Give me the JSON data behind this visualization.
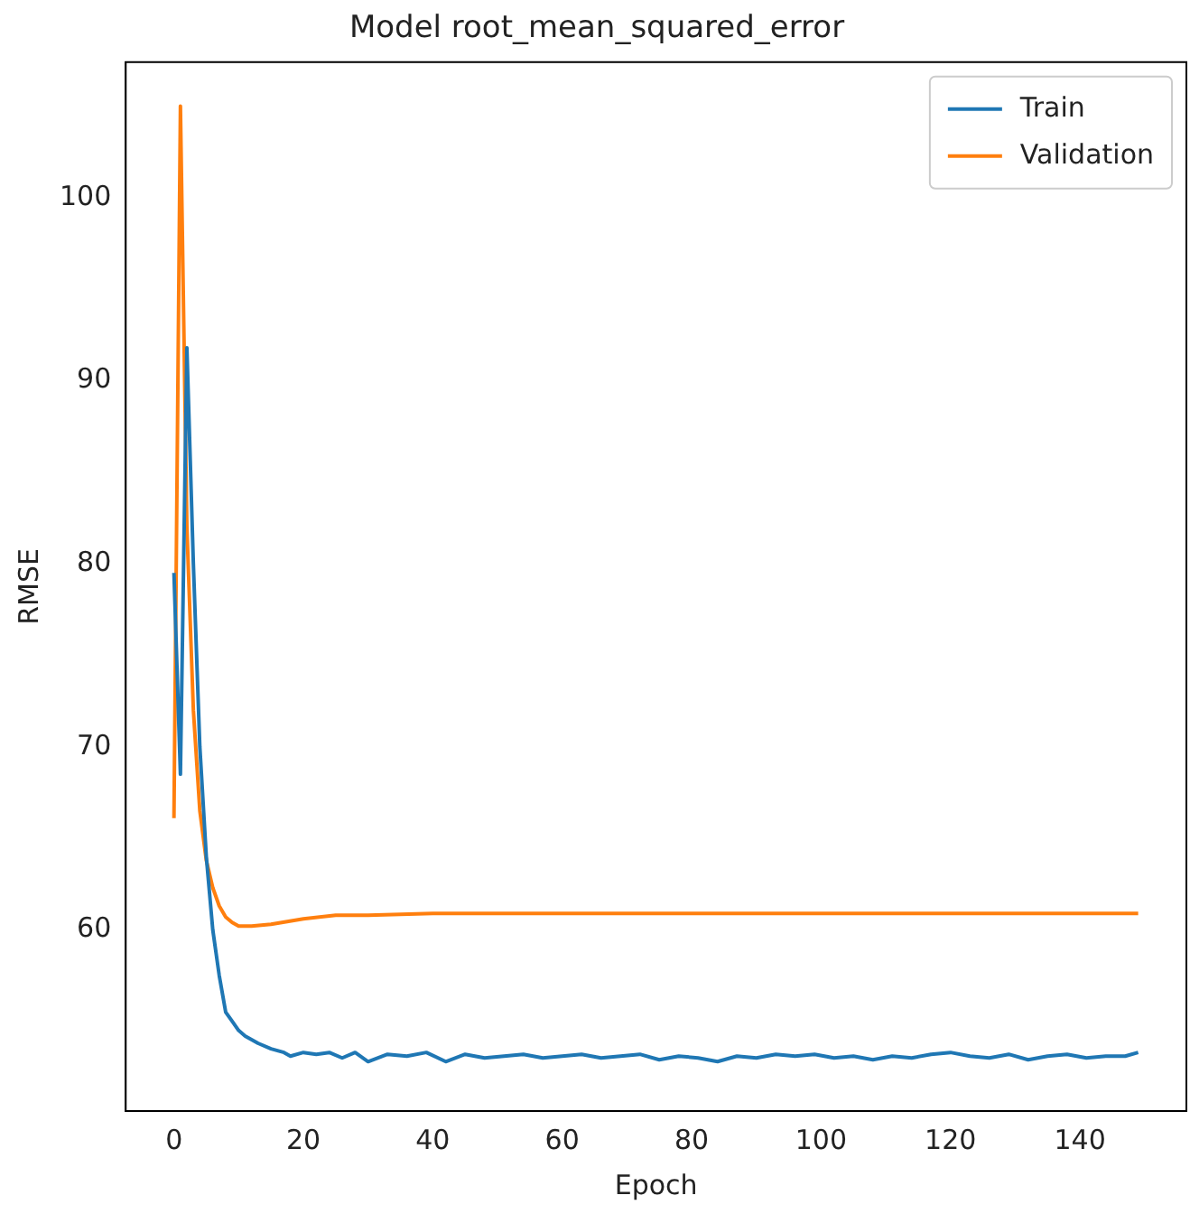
{
  "chart_data": {
    "type": "line",
    "title": "Model root_mean_squared_error",
    "xlabel": "Epoch",
    "ylabel": "RMSE",
    "xlim": [
      -7.45,
      156.45
    ],
    "xticks": [
      0,
      20,
      40,
      60,
      80,
      100,
      120,
      140
    ],
    "ylim": [
      50.1,
      107.4
    ],
    "yticks": [
      60,
      70,
      80,
      90,
      100
    ],
    "grid": false,
    "legend": "top right",
    "marker": "none",
    "line_style": "solid",
    "series": [
      {
        "name": "Train",
        "color": "#1f77b4",
        "x": [
          0,
          1,
          2,
          3,
          4,
          5,
          6,
          7,
          8,
          9,
          10,
          11,
          12,
          13,
          15,
          17,
          18,
          20,
          22,
          24,
          26,
          28,
          30,
          33,
          36,
          39,
          42,
          45,
          48,
          51,
          54,
          57,
          60,
          63,
          66,
          69,
          72,
          75,
          78,
          81,
          84,
          87,
          90,
          93,
          96,
          99,
          102,
          105,
          108,
          111,
          114,
          117,
          120,
          123,
          126,
          129,
          132,
          135,
          138,
          141,
          144,
          147,
          149
        ],
        "values": [
          79.5,
          68.5,
          91.8,
          80,
          70,
          64,
          60,
          57.5,
          55.5,
          55,
          54.5,
          54.2,
          54,
          53.8,
          53.5,
          53.3,
          53.1,
          53.3,
          53.2,
          53.3,
          53,
          53.3,
          52.8,
          53.2,
          53.1,
          53.3,
          52.8,
          53.2,
          53,
          53.1,
          53.2,
          53,
          53.1,
          53.2,
          53,
          53.1,
          53.2,
          52.9,
          53.1,
          53,
          52.8,
          53.1,
          53,
          53.2,
          53.1,
          53.2,
          53,
          53.1,
          52.9,
          53.1,
          53,
          53.2,
          53.3,
          53.1,
          53,
          53.2,
          52.9,
          53.1,
          53.2,
          53,
          53.1,
          53.1,
          53.3
        ]
      },
      {
        "name": "Validation",
        "color": "#ff7f0e",
        "x": [
          0,
          1,
          2,
          3,
          4,
          5,
          6,
          7,
          8,
          9,
          10,
          12,
          15,
          20,
          25,
          30,
          40,
          60,
          80,
          100,
          120,
          140,
          149
        ],
        "values": [
          66.1,
          105,
          82,
          72,
          66.5,
          63.8,
          62.3,
          61.3,
          60.7,
          60.4,
          60.2,
          60.2,
          60.3,
          60.6,
          60.8,
          60.8,
          60.9,
          60.9,
          60.9,
          60.9,
          60.9,
          60.9,
          60.9
        ]
      }
    ]
  }
}
